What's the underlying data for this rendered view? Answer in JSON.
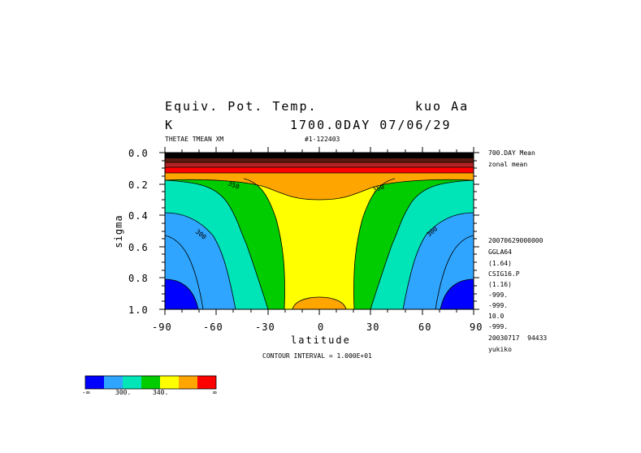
{
  "header": {
    "title_left": "Equiv. Pot. Temp.",
    "title_right": "kuo Aa",
    "unit": "K",
    "time_label": "1700.0DAY 07/06/29",
    "variable": "THETAE TMEAN XM",
    "run_id": "#1-122403"
  },
  "side_info": {
    "mean_label": "700.DAY Mean",
    "zonal_label": "zonal mean",
    "lines": [
      "20070629000000",
      "GGLA64",
      "(1.64)",
      "CSIG16.P",
      "(1.16)",
      "-999.",
      "-999.",
      "10.0",
      "-999.",
      "20030717  94433",
      "yukiko"
    ]
  },
  "footer": {
    "contour_interval": "CONTOUR INTERVAL = 1.000E+01"
  },
  "colorbar": {
    "colors": [
      "#0000ff",
      "#2fa5ff",
      "#00e5b8",
      "#00cc00",
      "#ffff00",
      "#ffa500",
      "#ff0000"
    ],
    "labels": [
      "-∞",
      "300.",
      "340.",
      "∞"
    ]
  },
  "chart_data": {
    "type": "heatmap",
    "title": "Equiv. Pot. Temp.",
    "xlabel": "latitude",
    "ylabel": "sigma",
    "xlim": [
      -90,
      90
    ],
    "ylim": [
      1.0,
      0.0
    ],
    "x_ticks": [
      "-90",
      "-60",
      "-30",
      "0",
      "30",
      "60",
      "90"
    ],
    "y_ticks": [
      "0.0",
      "0.2",
      "0.4",
      "0.6",
      "0.8",
      "1.0"
    ],
    "contour_interval": 10,
    "contour_labels": [
      "300",
      "350",
      "350",
      "300"
    ],
    "levels": [
      300,
      310,
      320,
      330,
      340,
      350,
      360
    ],
    "approx_values": {
      "polar_surface": 290,
      "polar_mid": 300,
      "midlat_mid": 320,
      "tropical_mid": 340,
      "tropical_upper": 350,
      "stratosphere_top": 400
    }
  }
}
